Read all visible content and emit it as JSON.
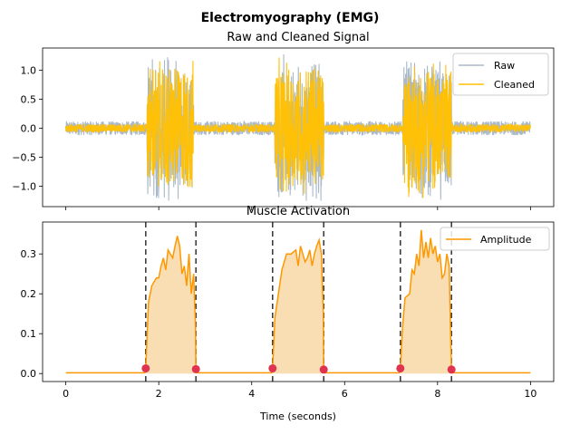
{
  "chart_data": [
    {
      "type": "line",
      "suptitle": "Electromyography (EMG)",
      "title": "Raw and Cleaned Signal",
      "xlabel": "",
      "ylabel": "",
      "xlim": [
        -0.5,
        10.5
      ],
      "ylim": [
        -1.35,
        1.38
      ],
      "xticks": [
        0,
        2,
        4,
        6,
        8,
        10
      ],
      "yticks": [
        -1.0,
        -0.5,
        0.0,
        0.5,
        1.0
      ],
      "ytick_labels": [
        "−1.0",
        "−0.5",
        "0.0",
        "0.5",
        "1.0"
      ],
      "legend_position": "top-right",
      "bursts": [
        [
          1.75,
          2.75
        ],
        [
          4.5,
          5.55
        ],
        [
          7.25,
          8.3
        ]
      ],
      "series": [
        {
          "name": "Raw",
          "color": "#a9b9c9",
          "baseline_amplitude": 0.12,
          "burst_amplitude": 1.3
        },
        {
          "name": "Cleaned",
          "color": "#ffc107",
          "baseline_amplitude": 0.07,
          "burst_amplitude": 1.25
        }
      ]
    },
    {
      "type": "area",
      "title": "Muscle Activation",
      "xlabel": "Time (seconds)",
      "ylabel": "",
      "xlim": [
        -0.5,
        10.5
      ],
      "ylim": [
        -0.02,
        0.38
      ],
      "xticks": [
        0,
        2,
        4,
        6,
        8,
        10
      ],
      "yticks": [
        0.0,
        0.1,
        0.2,
        0.3
      ],
      "ytick_labels": [
        "0.0",
        "0.1",
        "0.2",
        "0.3"
      ],
      "legend_position": "top-right",
      "series": [
        {
          "name": "Amplitude",
          "color": "#ff9800",
          "fill_color": "#f9deb3",
          "points": [
            [
              0,
              0.002
            ],
            [
              1.7,
              0.002
            ],
            [
              1.72,
              0.013
            ],
            [
              1.78,
              0.18
            ],
            [
              1.85,
              0.22
            ],
            [
              1.95,
              0.24
            ],
            [
              2.0,
              0.24
            ],
            [
              2.05,
              0.27
            ],
            [
              2.1,
              0.29
            ],
            [
              2.15,
              0.26
            ],
            [
              2.2,
              0.31
            ],
            [
              2.25,
              0.3
            ],
            [
              2.3,
              0.29
            ],
            [
              2.35,
              0.32
            ],
            [
              2.4,
              0.345
            ],
            [
              2.45,
              0.32
            ],
            [
              2.5,
              0.25
            ],
            [
              2.55,
              0.27
            ],
            [
              2.6,
              0.22
            ],
            [
              2.65,
              0.3
            ],
            [
              2.7,
              0.2
            ],
            [
              2.75,
              0.25
            ],
            [
              2.79,
              0.12
            ],
            [
              2.8,
              0.011
            ],
            [
              2.82,
              0.002
            ],
            [
              4.43,
              0.002
            ],
            [
              4.45,
              0.013
            ],
            [
              4.5,
              0.14
            ],
            [
              4.6,
              0.22
            ],
            [
              4.65,
              0.26
            ],
            [
              4.7,
              0.28
            ],
            [
              4.75,
              0.3
            ],
            [
              4.85,
              0.3
            ],
            [
              4.95,
              0.31
            ],
            [
              5.0,
              0.27
            ],
            [
              5.05,
              0.32
            ],
            [
              5.1,
              0.3
            ],
            [
              5.15,
              0.28
            ],
            [
              5.2,
              0.29
            ],
            [
              5.25,
              0.31
            ],
            [
              5.3,
              0.27
            ],
            [
              5.35,
              0.3
            ],
            [
              5.4,
              0.32
            ],
            [
              5.45,
              0.335
            ],
            [
              5.5,
              0.3
            ],
            [
              5.54,
              0.15
            ],
            [
              5.55,
              0.01
            ],
            [
              5.57,
              0.002
            ],
            [
              7.18,
              0.002
            ],
            [
              7.2,
              0.013
            ],
            [
              7.25,
              0.12
            ],
            [
              7.3,
              0.19
            ],
            [
              7.4,
              0.2
            ],
            [
              7.45,
              0.26
            ],
            [
              7.5,
              0.25
            ],
            [
              7.55,
              0.3
            ],
            [
              7.6,
              0.27
            ],
            [
              7.65,
              0.36
            ],
            [
              7.7,
              0.29
            ],
            [
              7.75,
              0.33
            ],
            [
              7.8,
              0.29
            ],
            [
              7.85,
              0.34
            ],
            [
              7.9,
              0.3
            ],
            [
              7.95,
              0.32
            ],
            [
              8.0,
              0.28
            ],
            [
              8.05,
              0.3
            ],
            [
              8.1,
              0.24
            ],
            [
              8.15,
              0.25
            ],
            [
              8.2,
              0.3
            ],
            [
              8.25,
              0.27
            ],
            [
              8.28,
              0.1
            ],
            [
              8.3,
              0.01
            ],
            [
              8.32,
              0.002
            ],
            [
              10,
              0.002
            ]
          ]
        }
      ],
      "onsets": [
        1.72,
        4.45,
        7.2
      ],
      "offsets": [
        2.8,
        5.55,
        8.3
      ],
      "marker_y": [
        0.013,
        0.011,
        0.013,
        0.01,
        0.013,
        0.01
      ],
      "marker_color": "#e0334f",
      "vline_color": "#333333"
    }
  ]
}
